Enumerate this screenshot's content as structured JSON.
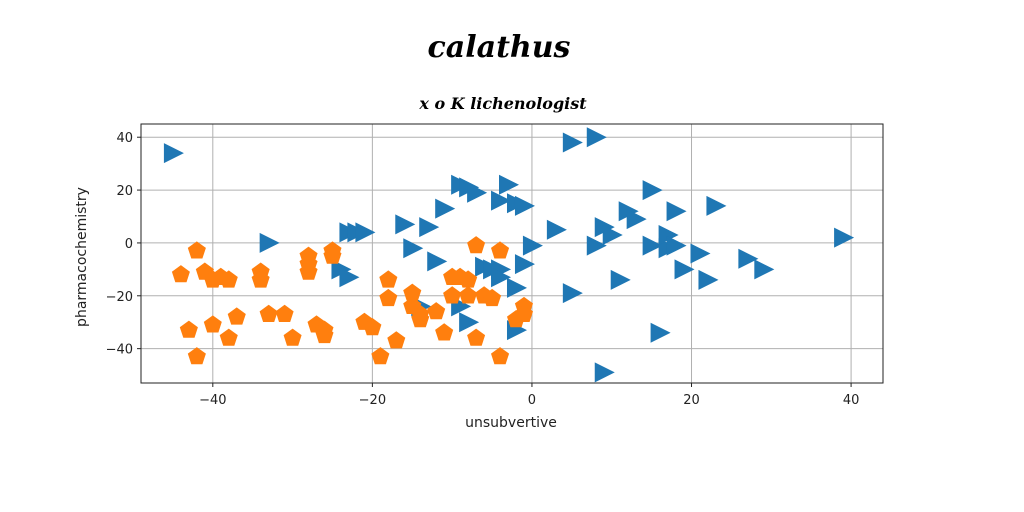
{
  "chart_data": {
    "type": "scatter",
    "title": "calathus",
    "subtitle": "x o K lichenologist",
    "xlabel": "unsubvertive",
    "ylabel": "pharmacochemistry",
    "xlim": [
      -49,
      44
    ],
    "ylim": [
      -53,
      45
    ],
    "xticks": [
      -40,
      -20,
      0,
      20,
      40
    ],
    "yticks": [
      -40,
      -20,
      0,
      20,
      40
    ],
    "grid": true,
    "series": [
      {
        "marker": "triangle-right",
        "color": "#1f77b4",
        "points": [
          [
            -45,
            34
          ],
          [
            -33,
            0
          ],
          [
            -24,
            -10
          ],
          [
            -23,
            -13
          ],
          [
            -23,
            4
          ],
          [
            -22,
            4
          ],
          [
            -21,
            4
          ],
          [
            -16,
            7
          ],
          [
            -15,
            -2
          ],
          [
            -13,
            6
          ],
          [
            -12,
            -7
          ],
          [
            -11,
            13
          ],
          [
            -14,
            -24
          ],
          [
            -9,
            22
          ],
          [
            -8,
            21
          ],
          [
            -7,
            19
          ],
          [
            -9,
            -24
          ],
          [
            -8,
            -30
          ],
          [
            -6,
            -9
          ],
          [
            -5,
            -10
          ],
          [
            -4,
            -10
          ],
          [
            -4,
            -13
          ],
          [
            -4,
            16
          ],
          [
            -2,
            15
          ],
          [
            -3,
            22
          ],
          [
            -2,
            -17
          ],
          [
            -1,
            14
          ],
          [
            -2,
            -33
          ],
          [
            0,
            -1
          ],
          [
            -1,
            -8
          ],
          [
            3,
            5
          ],
          [
            5,
            38
          ],
          [
            8,
            40
          ],
          [
            5,
            -19
          ],
          [
            8,
            -1
          ],
          [
            9,
            6
          ],
          [
            10,
            3
          ],
          [
            11,
            -14
          ],
          [
            12,
            12
          ],
          [
            13,
            9
          ],
          [
            15,
            20
          ],
          [
            15,
            -1
          ],
          [
            16,
            -34
          ],
          [
            17,
            -2
          ],
          [
            17,
            3
          ],
          [
            18,
            -1
          ],
          [
            18,
            12
          ],
          [
            19,
            -10
          ],
          [
            21,
            -4
          ],
          [
            22,
            -14
          ],
          [
            23,
            14
          ],
          [
            27,
            -6
          ],
          [
            29,
            -10
          ],
          [
            39,
            2
          ],
          [
            9,
            -49
          ]
        ]
      },
      {
        "marker": "pentagon",
        "color": "#ff7f0e",
        "points": [
          [
            -44,
            -12
          ],
          [
            -42,
            -3
          ],
          [
            -41,
            -11
          ],
          [
            -42,
            -43
          ],
          [
            -43,
            -33
          ],
          [
            -40,
            -14
          ],
          [
            -40,
            -31
          ],
          [
            -39,
            -13
          ],
          [
            -38,
            -14
          ],
          [
            -37,
            -28
          ],
          [
            -38,
            -36
          ],
          [
            -34,
            -11
          ],
          [
            -34,
            -14
          ],
          [
            -33,
            -27
          ],
          [
            -31,
            -27
          ],
          [
            -30,
            -36
          ],
          [
            -28,
            -5
          ],
          [
            -28,
            -8
          ],
          [
            -28,
            -11
          ],
          [
            -27,
            -31
          ],
          [
            -26,
            -33
          ],
          [
            -26,
            -35
          ],
          [
            -25,
            -3
          ],
          [
            -25,
            -5
          ],
          [
            -21,
            -30
          ],
          [
            -20,
            -32
          ],
          [
            -19,
            -43
          ],
          [
            -18,
            -14
          ],
          [
            -18,
            -21
          ],
          [
            -17,
            -37
          ],
          [
            -15,
            -19
          ],
          [
            -15,
            -24
          ],
          [
            -14,
            -27
          ],
          [
            -14,
            -29
          ],
          [
            -12,
            -26
          ],
          [
            -11,
            -34
          ],
          [
            -10,
            -20
          ],
          [
            -10,
            -13
          ],
          [
            -9,
            -13
          ],
          [
            -8,
            -14
          ],
          [
            -8,
            -20
          ],
          [
            -7,
            -36
          ],
          [
            -7,
            -1
          ],
          [
            -6,
            -20
          ],
          [
            -5,
            -21
          ],
          [
            -4,
            -3
          ],
          [
            -4,
            -43
          ],
          [
            -1,
            -24
          ],
          [
            -2,
            -29
          ],
          [
            -1,
            -27
          ]
        ]
      }
    ]
  }
}
